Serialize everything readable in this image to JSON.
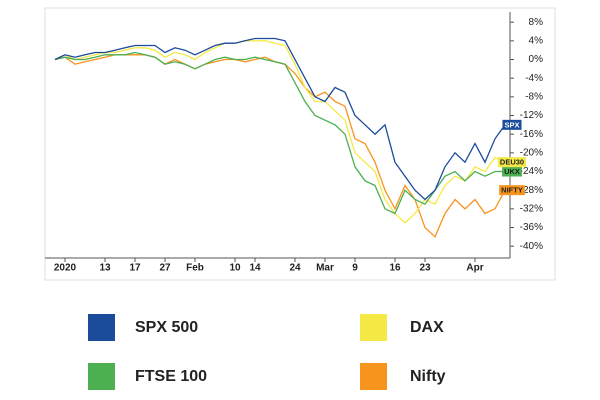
{
  "chart_data": {
    "type": "line",
    "categories": [
      null,
      "2020",
      null,
      null,
      null,
      "13",
      null,
      null,
      "17",
      null,
      null,
      "27",
      null,
      null,
      "Feb",
      null,
      null,
      null,
      "10",
      null,
      "14",
      null,
      null,
      null,
      "24",
      null,
      null,
      "Mar",
      null,
      null,
      "9",
      null,
      null,
      null,
      "16",
      null,
      null,
      "23",
      null,
      null,
      null,
      null,
      "Apr",
      null,
      null,
      null
    ],
    "series": [
      {
        "name": "SPX 500",
        "tag": "SPX",
        "color": "#1b4b9b",
        "values": [
          0,
          1,
          0.5,
          1,
          1.5,
          1.5,
          2,
          2.5,
          3,
          3,
          3,
          1.5,
          2.5,
          2,
          1,
          2,
          3,
          3.5,
          3.5,
          4,
          4.5,
          4.5,
          4.5,
          4,
          0,
          -4,
          -8,
          -9,
          -6,
          -7,
          -12,
          -14,
          -16,
          -14,
          -22,
          -25,
          -28,
          -30,
          -28,
          -23,
          -20,
          -22,
          -18,
          -22,
          -17,
          -14
        ]
      },
      {
        "name": "FTSE 100",
        "tag": "UKX",
        "color": "#4caf50",
        "values": [
          0,
          0.5,
          0,
          0,
          0.5,
          1,
          1,
          1,
          1.5,
          1,
          0.5,
          -1,
          -0.5,
          -1,
          -2,
          -1,
          0,
          0.5,
          0,
          0,
          0.5,
          0,
          -0.5,
          -1,
          -5,
          -9,
          -12,
          -13,
          -14,
          -16,
          -23,
          -26,
          -27,
          -32,
          -33,
          -28,
          -30,
          -31,
          -28,
          -25,
          -24,
          -26,
          -24,
          -25,
          -24,
          -24
        ]
      },
      {
        "name": "DAX",
        "tag": "DEU30",
        "color": "#f5e945",
        "values": [
          0,
          1,
          0,
          0.5,
          1,
          1.5,
          1.5,
          2,
          2.5,
          2.5,
          2,
          0.5,
          1.5,
          1,
          0,
          1.5,
          2.5,
          3.5,
          3.5,
          4,
          4,
          4,
          3.5,
          3,
          -1,
          -6,
          -9,
          -9,
          -11,
          -13,
          -20,
          -22,
          -24,
          -30,
          -33,
          -35,
          -33,
          -30,
          -31,
          -27,
          -25,
          -26,
          -23,
          -24,
          -21,
          -22
        ]
      },
      {
        "name": "Nifty",
        "tag": "NIFTY",
        "color": "#f7941d",
        "values": [
          0,
          0.5,
          -1,
          -0.5,
          0,
          0.5,
          1,
          1,
          1,
          1,
          0.5,
          -1,
          0,
          -1,
          -2,
          -1,
          -0.5,
          0,
          0,
          -0.5,
          0,
          0.5,
          -0.5,
          -1,
          -3,
          -6,
          -8,
          -7,
          -9,
          -10,
          -17,
          -18,
          -22,
          -28,
          -32,
          -27,
          -30,
          -36,
          -38,
          -33,
          -30,
          -32,
          -30,
          -33,
          -32,
          -28
        ]
      }
    ],
    "ylim": [
      -42,
      9
    ],
    "yticks": [
      {
        "value": 8,
        "label": "8%"
      },
      {
        "value": 4,
        "label": "4%"
      },
      {
        "value": 0,
        "label": "0%"
      },
      {
        "value": -4,
        "label": "-4%"
      },
      {
        "value": -8,
        "label": "-8%"
      },
      {
        "value": -12,
        "label": "-12%"
      },
      {
        "value": -16,
        "label": "-16%"
      },
      {
        "value": -20,
        "label": "-20%"
      },
      {
        "value": -24,
        "label": "-24%"
      },
      {
        "value": -28,
        "label": "-28%"
      },
      {
        "value": -32,
        "label": "-32%"
      },
      {
        "value": -36,
        "label": "-36%"
      },
      {
        "value": -40,
        "label": "-40%"
      }
    ],
    "grid": false
  }
}
